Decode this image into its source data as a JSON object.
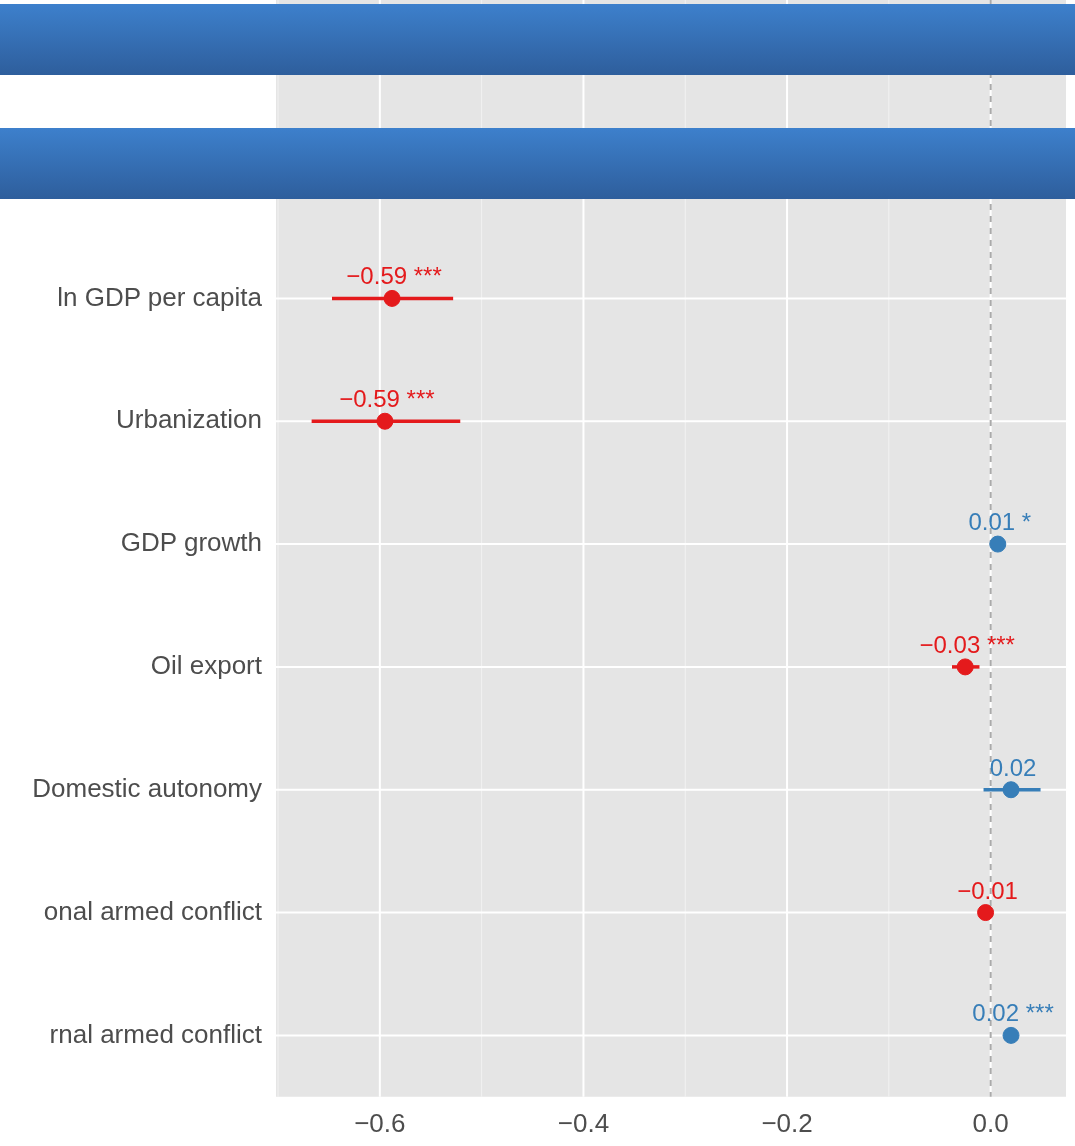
{
  "chart_data": {
    "type": "scatter",
    "orientation": "horizontal",
    "categories": [
      "ln GDP per capita",
      "Urbanization",
      "GDP growth",
      "Oil export",
      "Domestic autonomy",
      "onal armed conflict",
      "rnal armed conflict"
    ],
    "values": [
      -0.588,
      -0.595,
      0.007,
      -0.025,
      0.02,
      -0.005,
      0.02
    ],
    "errors": [
      [
        -0.647,
        -0.528
      ],
      [
        -0.667,
        -0.521
      ],
      null,
      [
        -0.038,
        -0.011
      ],
      [
        -0.007,
        0.049
      ],
      null,
      null
    ],
    "colors": [
      "#e41a1c",
      "#e41a1c",
      "#377eb8",
      "#e41a1c",
      "#377eb8",
      "#e41a1c",
      "#377eb8"
    ],
    "value_labels": [
      "−0.59 ***",
      "−0.59 ***",
      "0.01 *",
      "−0.03 ***",
      "0.02",
      "−0.01",
      "0.02 ***"
    ],
    "xlim": [
      -0.702,
      0.074
    ],
    "xticks": [
      {
        "value": -0.6,
        "label": "−0.6"
      },
      {
        "value": -0.4,
        "label": "−0.4"
      },
      {
        "value": -0.2,
        "label": "−0.2"
      },
      {
        "value": 0,
        "label": "0.0"
      }
    ],
    "grid": true,
    "marker": "circle",
    "ref_lines": [
      {
        "axis": "x",
        "value": 0,
        "color": "#aaaaaa",
        "line_style": "dashed"
      }
    ]
  }
}
